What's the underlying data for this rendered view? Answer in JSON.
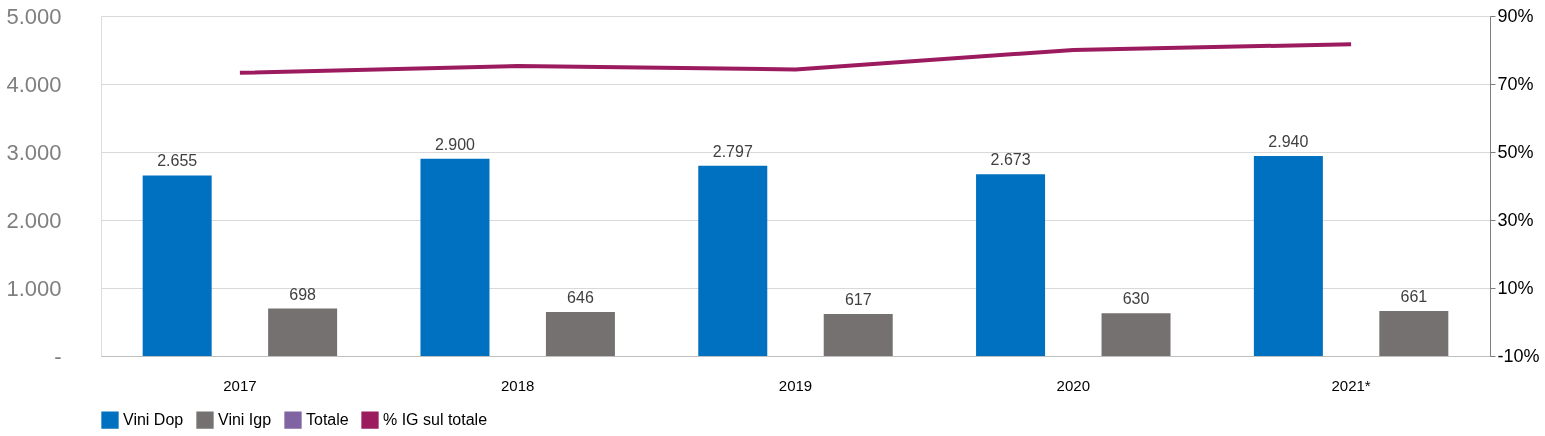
{
  "chart_data": {
    "type": "bar",
    "categories": [
      "2017",
      "2018",
      "2019",
      "2020",
      "2021*"
    ],
    "series": [
      {
        "name": "Vini Dop",
        "color": "#0070c0",
        "values": [
          2655,
          2900,
          2797,
          2673,
          2940
        ],
        "value_labels": [
          "2.655",
          "2.900",
          "2.797",
          "2.673",
          "2.940"
        ]
      },
      {
        "name": "Vini Igp",
        "color": "#767171",
        "values": [
          698,
          646,
          617,
          630,
          661
        ],
        "value_labels": [
          "698",
          "646",
          "617",
          "630",
          "661"
        ]
      },
      {
        "name": "Totale",
        "type": "line",
        "color": "#8064a2",
        "values": [
          null,
          null,
          null,
          null,
          null
        ]
      },
      {
        "name": "%  IG sul totale",
        "type": "line",
        "axis": "y2",
        "color": "#9b1b5e",
        "values": [
          73.3,
          75.3,
          74.3,
          80,
          81.7
        ]
      }
    ],
    "ylim": [
      0,
      5000
    ],
    "yticks": [
      {
        "value": 0,
        "label": "-"
      },
      {
        "value": 1000,
        "label": "1.000"
      },
      {
        "value": 2000,
        "label": "2.000"
      },
      {
        "value": 3000,
        "label": "3.000"
      },
      {
        "value": 4000,
        "label": "4.000"
      },
      {
        "value": 5000,
        "label": "5.000"
      }
    ],
    "y2lim": [
      -10,
      90
    ],
    "y2ticks": [
      {
        "value": -10,
        "label": "-10%"
      },
      {
        "value": 10,
        "label": "10%"
      },
      {
        "value": 30,
        "label": "30%"
      },
      {
        "value": 50,
        "label": "50%"
      },
      {
        "value": 70,
        "label": "70%"
      },
      {
        "value": 90,
        "label": "90%"
      }
    ],
    "grid": "y",
    "legend": "bottom"
  }
}
